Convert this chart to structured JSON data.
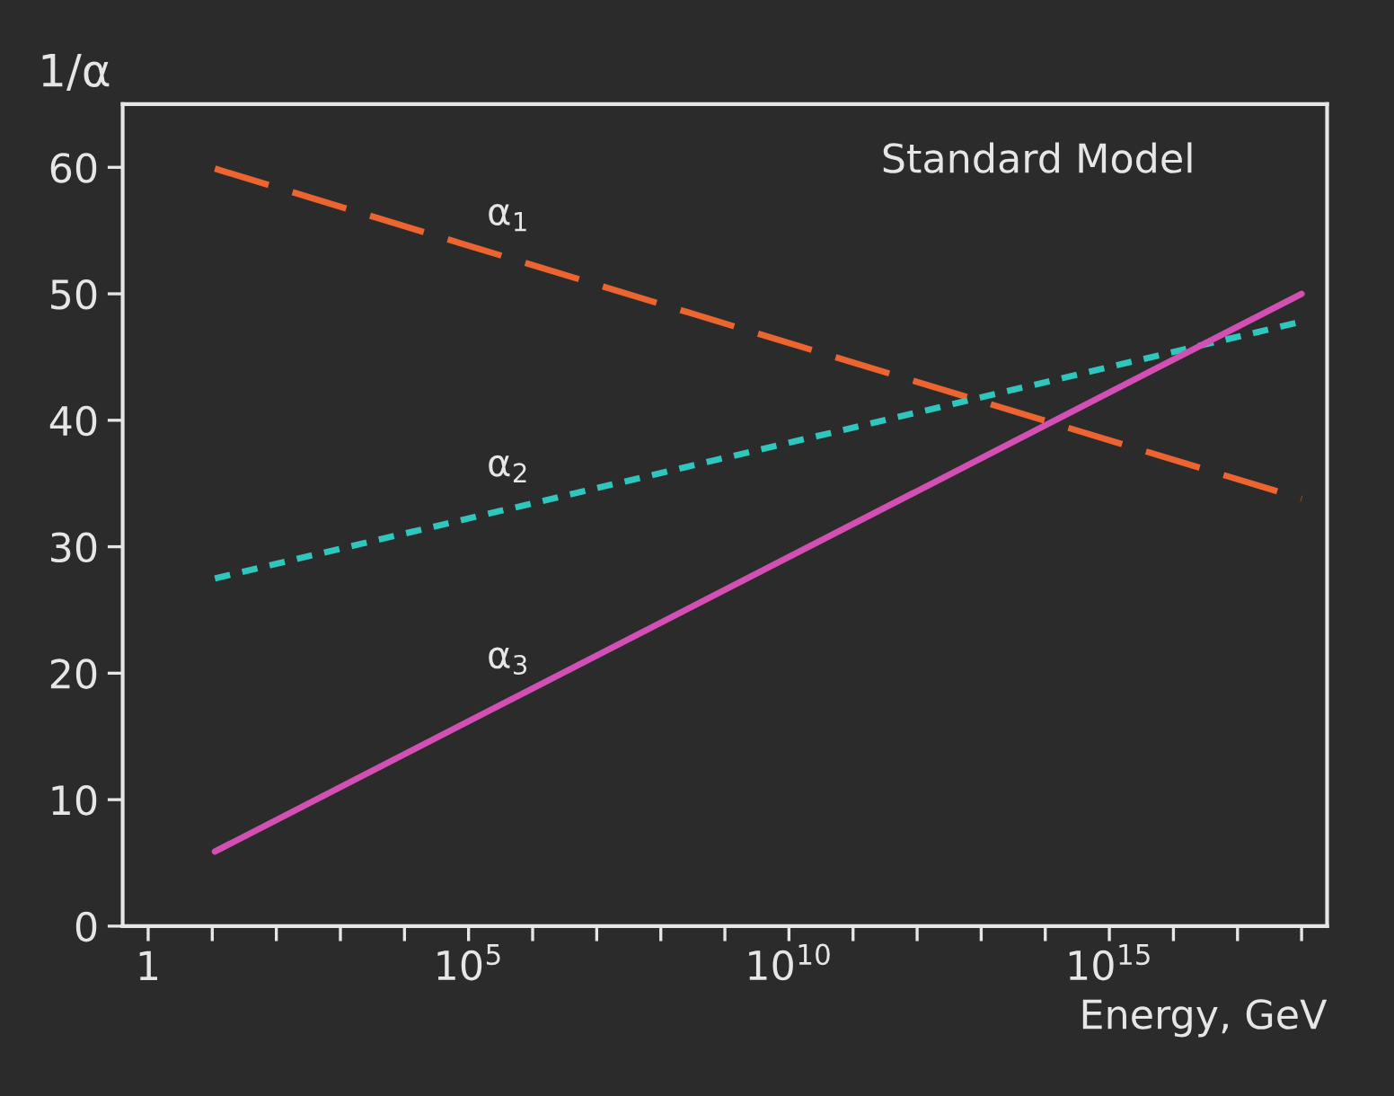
{
  "chart_data": {
    "type": "line",
    "ylabel": "1/α",
    "xlabel": "Energy, GeV",
    "annotations": [
      "Standard Model"
    ],
    "x": [
      11,
      1e+18
    ],
    "series": [
      {
        "name": "α$_{1}$",
        "color": "#ec6530",
        "values": [
          59.9,
          33.8
        ],
        "line_style": "dashed"
      },
      {
        "name": "α$_{2}$",
        "color": "#2ec6bd",
        "values": [
          27.5,
          47.8
        ],
        "line_style": "dotted"
      },
      {
        "name": "α$_{3}$",
        "color": "#d24fb4",
        "values": [
          5.9,
          50
        ],
        "line_style": "solid"
      }
    ],
    "log": "x",
    "xlim": [
      0.4,
      2.5e+18
    ],
    "xticks": [
      1,
      {
        "value": 10,
        "label": null
      },
      {
        "value": 100,
        "label": null
      },
      {
        "value": 1000,
        "label": null
      },
      {
        "value": 10000,
        "label": null
      },
      {
        "value": 100000.0,
        "label": "10$^{5}$"
      },
      {
        "value": 1000000.0,
        "label": null
      },
      {
        "value": 10000000.0,
        "label": null
      },
      {
        "value": 100000000.0,
        "label": null
      },
      {
        "value": 1000000000.0,
        "label": null
      },
      {
        "value": 10000000000.0,
        "label": "10$^{10}$"
      },
      {
        "value": 100000000000.0,
        "label": null
      },
      {
        "value": 1000000000000.0,
        "label": null
      },
      {
        "value": 10000000000000.0,
        "label": null
      },
      {
        "value": 100000000000000.0,
        "label": null
      },
      {
        "value": 1000000000000000.0,
        "label": "10$^{15}$"
      },
      {
        "value": 1e+16,
        "label": null
      },
      {
        "value": 1e+17,
        "label": null
      },
      {
        "value": 1e+18,
        "label": null
      }
    ],
    "ylim": [
      0,
      65
    ],
    "yticks": [
      0,
      10,
      20,
      30,
      40,
      50,
      60
    ],
    "grid": false,
    "legend": false
  }
}
